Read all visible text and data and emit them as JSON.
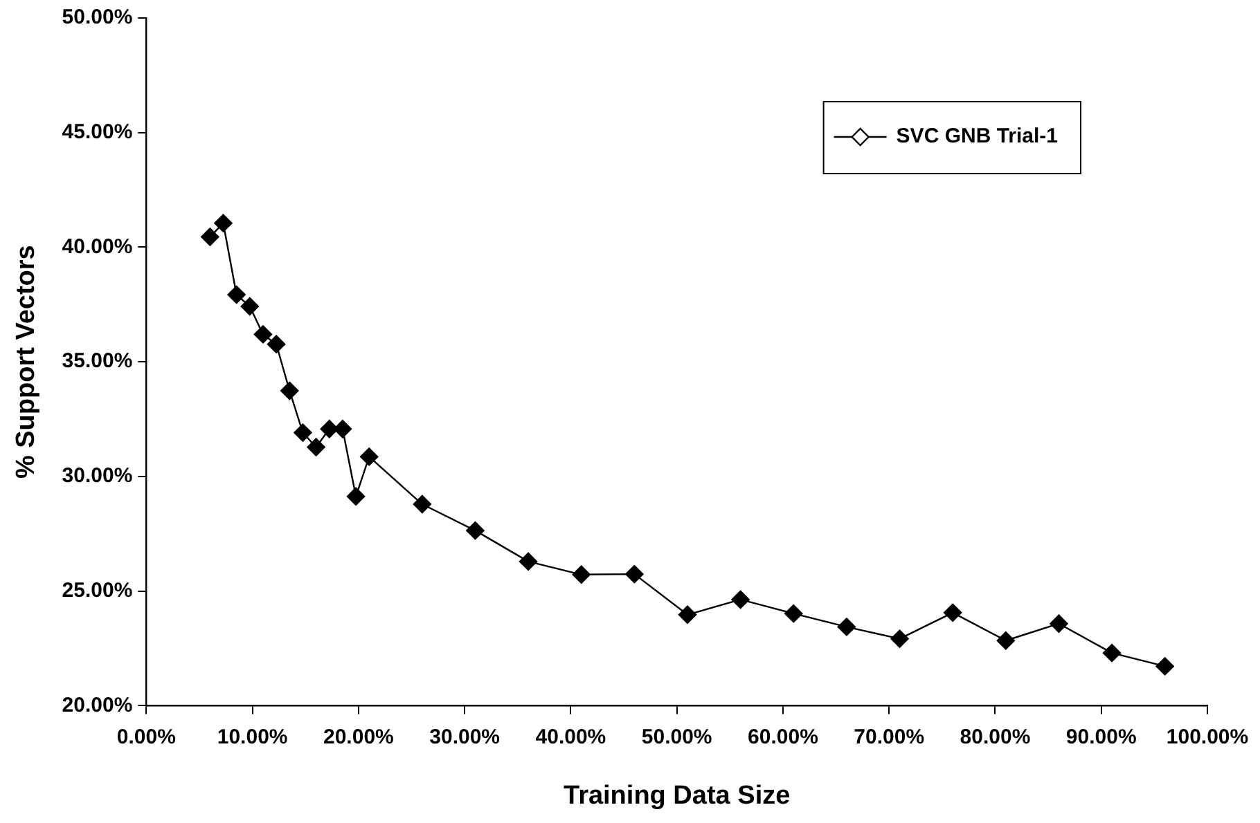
{
  "chart_data": {
    "type": "line",
    "xlabel": "Training Data Size",
    "ylabel": "% Support Vectors",
    "x": [
      6,
      7.25,
      8.5,
      9.75,
      11,
      12.25,
      13.5,
      14.75,
      16,
      17.25,
      18.5,
      19.75,
      21,
      26,
      31,
      36,
      41,
      46,
      51,
      56,
      61,
      66,
      71,
      76,
      81,
      86,
      91,
      96
    ],
    "series": [
      {
        "name": "SVC GNB Trial-1",
        "color": "#000000",
        "values": [
          40.45,
          41.05,
          37.93,
          37.42,
          36.2,
          35.77,
          33.74,
          31.91,
          31.28,
          32.07,
          32.07,
          29.13,
          30.86,
          28.79,
          27.64,
          26.29,
          25.72,
          25.74,
          23.97,
          24.63,
          24.02,
          23.44,
          22.92,
          24.06,
          22.84,
          23.58,
          22.3,
          21.72
        ]
      }
    ],
    "xlim": [
      0,
      100
    ],
    "xticks": [
      {
        "value": 0,
        "label": "0.00%"
      },
      {
        "value": 10,
        "label": "10.00%"
      },
      {
        "value": 20,
        "label": "20.00%"
      },
      {
        "value": 30,
        "label": "30.00%"
      },
      {
        "value": 40,
        "label": "40.00%"
      },
      {
        "value": 50,
        "label": "50.00%"
      },
      {
        "value": 60,
        "label": "60.00%"
      },
      {
        "value": 70,
        "label": "70.00%"
      },
      {
        "value": 80,
        "label": "80.00%"
      },
      {
        "value": 90,
        "label": "90.00%"
      },
      {
        "value": 100,
        "label": "100.00%"
      }
    ],
    "ylim": [
      20,
      50
    ],
    "yticks": [
      {
        "value": 20,
        "label": "20.00%"
      },
      {
        "value": 25,
        "label": "25.00%"
      },
      {
        "value": 30,
        "label": "30.00%"
      },
      {
        "value": 35,
        "label": "35.00%"
      },
      {
        "value": 40,
        "label": "40.00%"
      },
      {
        "value": 45,
        "label": "45.00%"
      },
      {
        "value": 50,
        "label": "50.00%"
      }
    ],
    "grid": false,
    "legend": "top right",
    "marker": "diamond",
    "line_style": "solid"
  }
}
